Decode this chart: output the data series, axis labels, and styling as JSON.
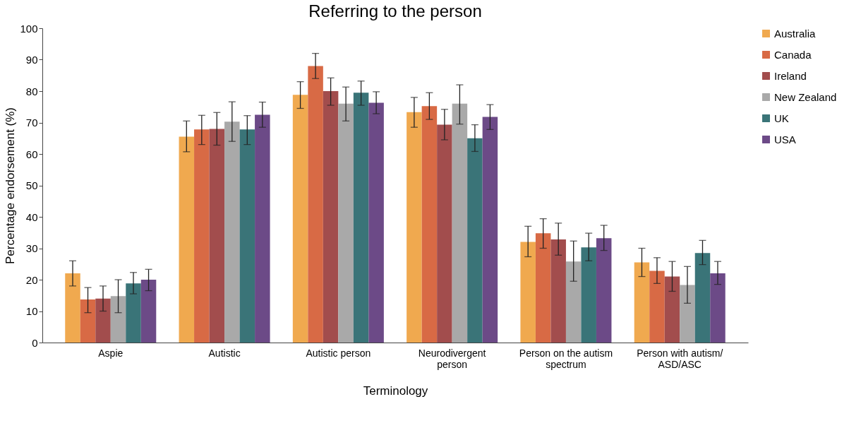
{
  "chart_data": {
    "type": "bar",
    "title": "Referring to the person",
    "xlabel": "Terminology",
    "ylabel": "Percentage endorsement (%)",
    "categories": [
      "Aspie",
      "Autistic",
      "Autistic person",
      "Neurodivergent person",
      "Person on the autism spectrum",
      "Person with autism/ ASD/ASC"
    ],
    "series": [
      {
        "name": "Australia",
        "color": "#f0a94f",
        "values": [
          22,
          65.5,
          78.8,
          73.3,
          32,
          25.5
        ],
        "errors": [
          [
            18,
            26
          ],
          [
            60.7,
            70.5
          ],
          [
            74.5,
            83
          ],
          [
            68.5,
            78
          ],
          [
            27.3,
            37
          ],
          [
            21,
            30
          ]
        ]
      },
      {
        "name": "Canada",
        "color": "#d86a45",
        "values": [
          13.7,
          67.8,
          88,
          75.2,
          34.8,
          22.8
        ],
        "errors": [
          [
            9.5,
            17.5
          ],
          [
            63,
            72.3
          ],
          [
            84,
            92
          ],
          [
            71,
            79.5
          ],
          [
            30,
            39.4
          ],
          [
            18.8,
            27
          ]
        ]
      },
      {
        "name": "Ireland",
        "color": "#a24d4d",
        "values": [
          14,
          68,
          80,
          69.3,
          32.8,
          21
        ],
        "errors": [
          [
            10,
            18
          ],
          [
            62.8,
            73.2
          ],
          [
            75.5,
            84.2
          ],
          [
            64.5,
            74.2
          ],
          [
            27.8,
            38
          ],
          [
            16.3,
            25.8
          ]
        ]
      },
      {
        "name": "New Zealand",
        "color": "#a9a9a9",
        "values": [
          14.8,
          70.3,
          76,
          76,
          25.8,
          18.3
        ],
        "errors": [
          [
            9.5,
            20
          ],
          [
            64,
            76.6
          ],
          [
            70.5,
            81.3
          ],
          [
            69.5,
            82
          ],
          [
            19.5,
            32.3
          ],
          [
            12.5,
            24.2
          ]
        ]
      },
      {
        "name": "UK",
        "color": "#3a7478",
        "values": [
          18.8,
          67.8,
          79.5,
          65,
          30.3,
          28.5
        ],
        "errors": [
          [
            15.5,
            22.3
          ],
          [
            63,
            72.2
          ],
          [
            75.5,
            83.2
          ],
          [
            60.8,
            69.3
          ],
          [
            26,
            34.8
          ],
          [
            24.8,
            32.5
          ]
        ]
      },
      {
        "name": "USA",
        "color": "#6c4a87",
        "values": [
          20,
          72.5,
          76.3,
          71.8,
          33.2,
          22
        ],
        "errors": [
          [
            16.5,
            23.3
          ],
          [
            68.5,
            76.5
          ],
          [
            72.8,
            79.8
          ],
          [
            67.8,
            75.7
          ],
          [
            29.3,
            37.3
          ],
          [
            18.5,
            25.8
          ]
        ]
      }
    ],
    "ylim": [
      0,
      100
    ],
    "yticks": [
      0,
      10,
      20,
      30,
      40,
      50,
      60,
      70,
      80,
      90,
      100
    ],
    "grid": false,
    "legend": "right"
  }
}
